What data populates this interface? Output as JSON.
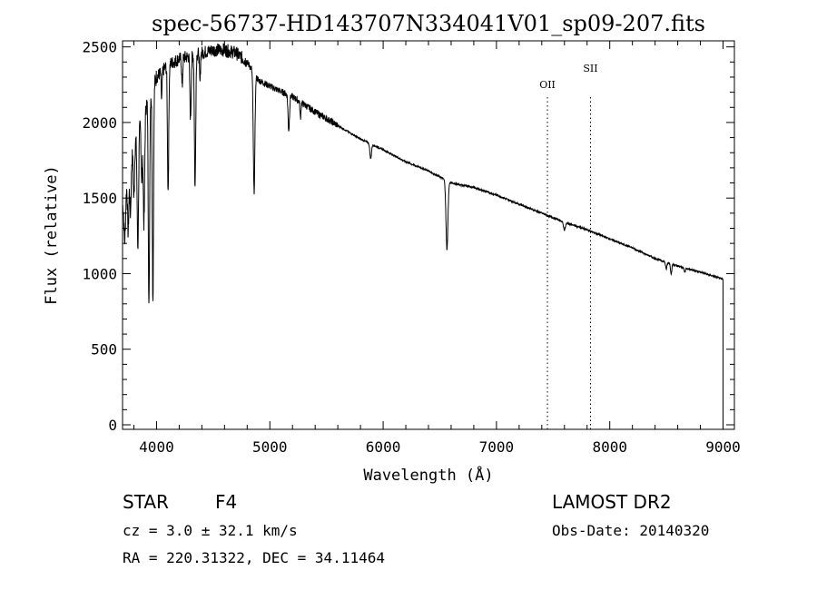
{
  "chart_data": {
    "type": "line",
    "title": "spec-56737-HD143707N334041V01_sp09-207.fits",
    "xlabel": "Wavelength (Å)",
    "ylabel": "Flux (relative)",
    "xlim": [
      3700,
      9100
    ],
    "ylim": [
      -30,
      2540
    ],
    "xticks": [
      4000,
      5000,
      6000,
      7000,
      8000,
      9000
    ],
    "xtick_labels": [
      "4000",
      "5000",
      "6000",
      "7000",
      "8000",
      "9000"
    ],
    "yticks": [
      0,
      500,
      1000,
      1500,
      2000,
      2500
    ],
    "ytick_labels": [
      "0",
      "500",
      "1000",
      "1500",
      "2000",
      "2500"
    ],
    "grid": false,
    "line_color": "#000000",
    "continuum": [
      [
        3700,
        1450
      ],
      [
        3800,
        1850
      ],
      [
        3900,
        2100
      ],
      [
        4000,
        2300
      ],
      [
        4100,
        2380
      ],
      [
        4200,
        2420
      ],
      [
        4300,
        2440
      ],
      [
        4400,
        2460
      ],
      [
        4500,
        2480
      ],
      [
        4600,
        2480
      ],
      [
        4700,
        2460
      ],
      [
        4800,
        2400
      ],
      [
        4900,
        2280
      ],
      [
        5000,
        2240
      ],
      [
        5200,
        2170
      ],
      [
        5400,
        2070
      ],
      [
        5600,
        1980
      ],
      [
        5800,
        1890
      ],
      [
        6000,
        1820
      ],
      [
        6200,
        1740
      ],
      [
        6400,
        1680
      ],
      [
        6500,
        1640
      ],
      [
        6600,
        1600
      ],
      [
        6800,
        1570
      ],
      [
        7000,
        1520
      ],
      [
        7200,
        1460
      ],
      [
        7400,
        1400
      ],
      [
        7600,
        1340
      ],
      [
        7800,
        1290
      ],
      [
        8000,
        1230
      ],
      [
        8200,
        1170
      ],
      [
        8400,
        1100
      ],
      [
        8600,
        1050
      ],
      [
        8800,
        1010
      ],
      [
        8950,
        975
      ],
      [
        9000,
        960
      ]
    ],
    "absorption_lines": [
      {
        "wavelength": 3720,
        "flux": 1220,
        "width": 10
      },
      {
        "wavelength": 3750,
        "flux": 1270,
        "width": 8
      },
      {
        "wavelength": 3770,
        "flux": 1400,
        "width": 8
      },
      {
        "wavelength": 3800,
        "flux": 1500,
        "width": 8
      },
      {
        "wavelength": 3835,
        "flux": 1180,
        "width": 9
      },
      {
        "wavelength": 3870,
        "flux": 1620,
        "width": 8
      },
      {
        "wavelength": 3889,
        "flux": 1330,
        "width": 9
      },
      {
        "wavelength": 3933,
        "flux": 780,
        "width": 8
      },
      {
        "wavelength": 3968,
        "flux": 830,
        "width": 8
      },
      {
        "wavelength": 4045,
        "flux": 2150,
        "width": 6
      },
      {
        "wavelength": 4102,
        "flux": 1550,
        "width": 8
      },
      {
        "wavelength": 4226,
        "flux": 2230,
        "width": 6
      },
      {
        "wavelength": 4300,
        "flux": 2030,
        "width": 8
      },
      {
        "wavelength": 4340,
        "flux": 1570,
        "width": 8
      },
      {
        "wavelength": 4383,
        "flux": 2260,
        "width": 6
      },
      {
        "wavelength": 4861,
        "flux": 1540,
        "width": 10
      },
      {
        "wavelength": 5167,
        "flux": 1950,
        "width": 9
      },
      {
        "wavelength": 5270,
        "flux": 2030,
        "width": 6
      },
      {
        "wavelength": 5890,
        "flux": 1760,
        "width": 10
      },
      {
        "wavelength": 6563,
        "flux": 1160,
        "width": 12
      },
      {
        "wavelength": 7600,
        "flux": 1290,
        "width": 12
      },
      {
        "wavelength": 8498,
        "flux": 1030,
        "width": 8
      },
      {
        "wavelength": 8542,
        "flux": 1000,
        "width": 8
      },
      {
        "wavelength": 8662,
        "flux": 1010,
        "width": 8
      }
    ],
    "end_drop": [
      9000,
      -10
    ],
    "line_markers": [
      {
        "label": "OII",
        "wavelength": 7450
      },
      {
        "label": "SII",
        "wavelength": 7830
      }
    ]
  },
  "info": {
    "class_label": "STAR",
    "subclass": "F4",
    "redshift": "cz = 3.0 ± 32.1 km/s",
    "coords": "RA = 220.31322, DEC =  34.11464",
    "survey": "LAMOST DR2",
    "obs_date": "Obs-Date: 20140320"
  }
}
